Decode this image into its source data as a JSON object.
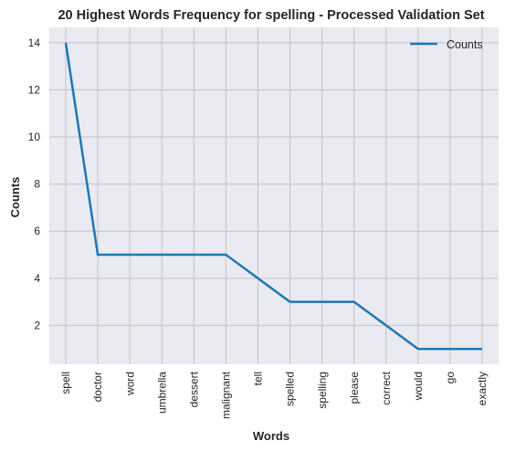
{
  "chart_data": {
    "type": "line",
    "title": "20 Highest Words Frequency for spelling - Processed Validation Set",
    "xlabel": "Words",
    "ylabel": "Counts",
    "categories": [
      "spell",
      "doctor",
      "word",
      "umbrella",
      "dessert",
      "malignant",
      "tell",
      "spelled",
      "spelling",
      "please",
      "correct",
      "would",
      "go",
      "exactly"
    ],
    "series": [
      {
        "name": "Counts",
        "color": "#1f77b4",
        "values": [
          14,
          5,
          5,
          5,
          5,
          5,
          4,
          3,
          3,
          3,
          2,
          1,
          1,
          1
        ]
      }
    ],
    "ylim": [
      0.35,
      14.65
    ],
    "yticks": [
      2,
      4,
      6,
      8,
      10,
      12,
      14
    ],
    "grid": true,
    "legend_position": "top-right",
    "background": "#eaeaf2",
    "gridline_color": "#c4c4c4"
  }
}
